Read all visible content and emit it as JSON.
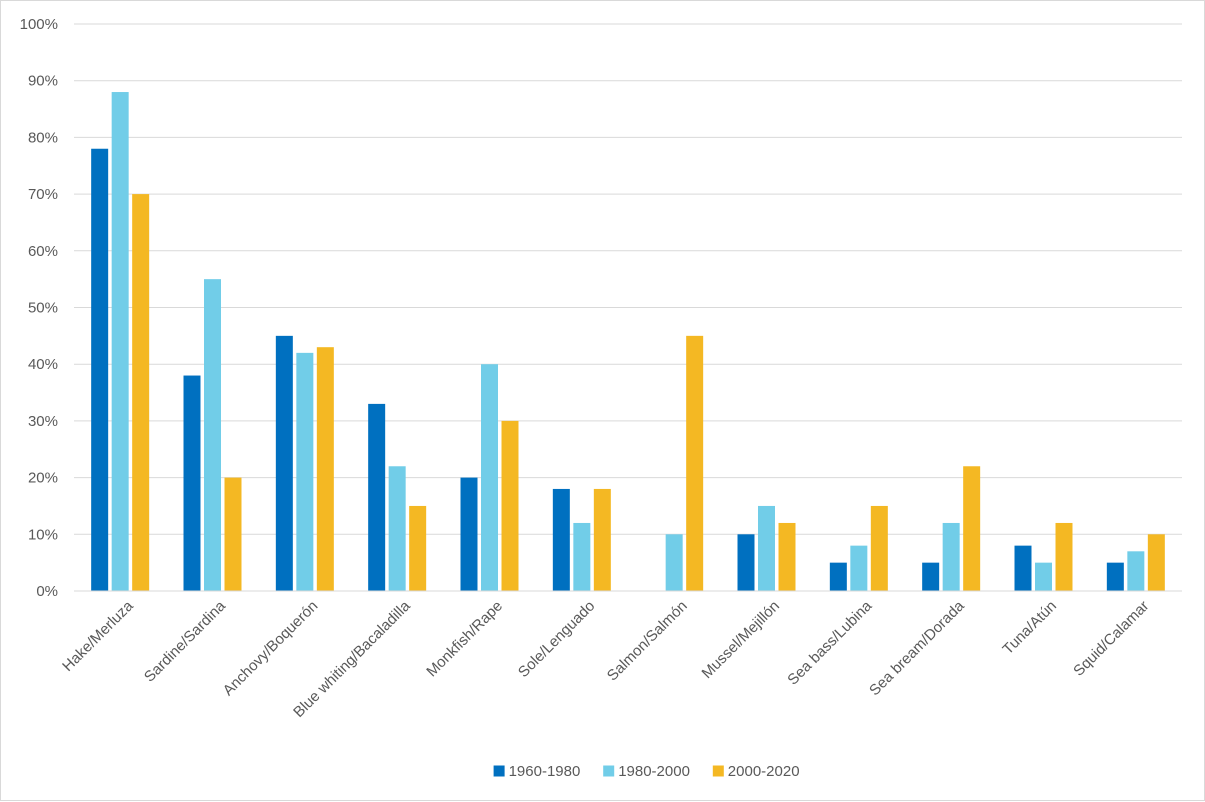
{
  "chart_data": {
    "type": "bar",
    "title": "",
    "xlabel": "",
    "ylabel": "",
    "ylim": [
      0,
      100
    ],
    "y_ticks": [
      "0%",
      "10%",
      "20%",
      "30%",
      "40%",
      "50%",
      "60%",
      "70%",
      "80%",
      "90%",
      "100%"
    ],
    "grid": true,
    "legend_position": "bottom",
    "categories": [
      "Hake/Merluza",
      "Sardine/Sardina",
      "Anchovy/Boquerón",
      "Blue whiting/Bacaladilla",
      "Monkfish/Rape",
      "Sole/Lenguado",
      "Salmon/Salmón",
      "Mussel/Mejillón",
      "Sea bass/Lubina",
      "Sea bream/Dorada",
      "Tuna/Atún",
      "Squid/Calamar"
    ],
    "series": [
      {
        "name": "1960-1980",
        "color": "#0070c0",
        "values": [
          78,
          38,
          45,
          33,
          20,
          18,
          0,
          10,
          5,
          5,
          8,
          5
        ]
      },
      {
        "name": "1980-2000",
        "color": "#71cde8",
        "values": [
          88,
          55,
          42,
          22,
          40,
          12,
          10,
          15,
          8,
          12,
          5,
          7
        ]
      },
      {
        "name": "2000-2020",
        "color": "#f4b823",
        "values": [
          70,
          20,
          43,
          15,
          30,
          18,
          45,
          12,
          15,
          22,
          12,
          10
        ]
      }
    ]
  }
}
